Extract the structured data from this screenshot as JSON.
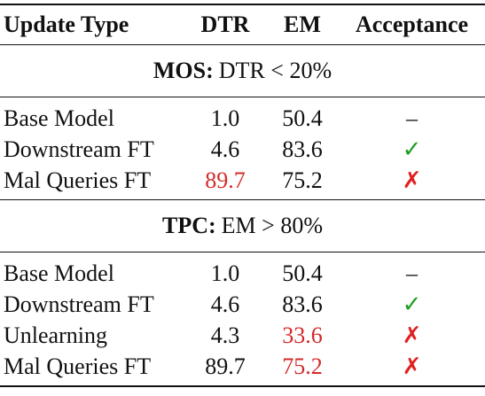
{
  "table": {
    "header": [
      "Update Type",
      "DTR",
      "EM",
      "Acceptance"
    ],
    "sections": [
      {
        "title_bold": "MOS:",
        "title": "DTR < 20%",
        "rows": [
          [
            "Base Model",
            "1.0",
            "50.4",
            "–"
          ],
          [
            "Downstream FT",
            "4.6",
            "83.6",
            "✓"
          ],
          [
            "Mal Queries FT",
            "89.7",
            "75.2",
            "✗"
          ]
        ],
        "cell_colors": [
          {
            "row": 1,
            "col": 3,
            "color": "#1e9e1e"
          },
          {
            "row": 2,
            "col": 1,
            "color": "#d42a2a"
          },
          {
            "row": 2,
            "col": 3,
            "color": "#e02020"
          }
        ]
      },
      {
        "title_bold": "TPC:",
        "title": "EM > 80%",
        "rows": [
          [
            "Base Model",
            "1.0",
            "50.4",
            "–"
          ],
          [
            "Downstream FT",
            "4.6",
            "83.6",
            "✓"
          ],
          [
            "Unlearning",
            "4.3",
            "33.6",
            "✗"
          ],
          [
            "Mal Queries FT",
            "89.7",
            "75.2",
            "✗"
          ]
        ],
        "cell_colors": [
          {
            "row": 1,
            "col": 3,
            "color": "#1e9e1e"
          },
          {
            "row": 2,
            "col": 2,
            "color": "#d42a2a"
          },
          {
            "row": 2,
            "col": 3,
            "color": "#e02020"
          },
          {
            "row": 3,
            "col": 2,
            "color": "#d42a2a"
          },
          {
            "row": 3,
            "col": 3,
            "color": "#e02020"
          }
        ]
      }
    ]
  }
}
